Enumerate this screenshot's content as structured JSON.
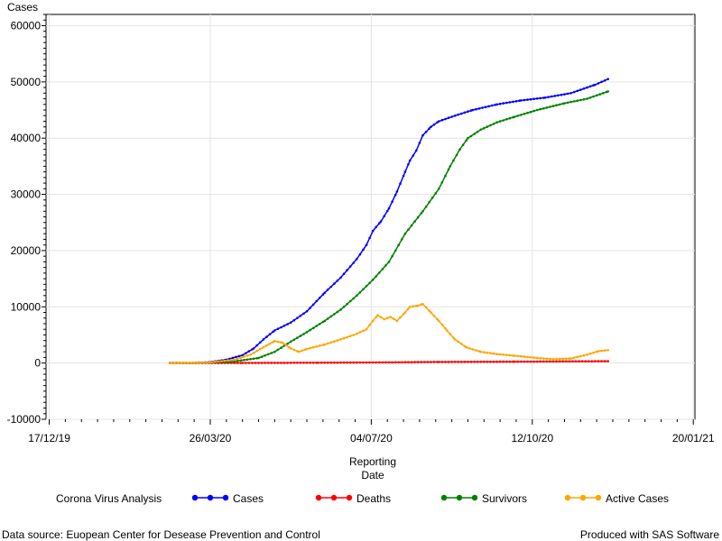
{
  "chart_data": {
    "type": "line",
    "ylabel": "Cases",
    "xlabel_lines": [
      "Reporting",
      "Date"
    ],
    "ylim": [
      -10000,
      62000
    ],
    "y_ticks": [
      -10000,
      0,
      10000,
      20000,
      30000,
      40000,
      50000,
      60000
    ],
    "x_ticks": [
      {
        "date": "2019-12-17",
        "label": "17/12/19"
      },
      {
        "date": "2020-03-26",
        "label": "26/03/20"
      },
      {
        "date": "2020-07-04",
        "label": "04/07/20"
      },
      {
        "date": "2020-10-12",
        "label": "12/10/20"
      },
      {
        "date": "2021-01-20",
        "label": "20/01/21"
      }
    ],
    "xlim": [
      "2019-12-15",
      "2021-01-21"
    ],
    "grid": true,
    "legend_title": "Corona Virus Analysis",
    "legend_position": "bottom",
    "series": [
      {
        "name": "Cases",
        "color": "#0000ff",
        "points": [
          [
            "2020-03-01",
            0
          ],
          [
            "2020-03-15",
            50
          ],
          [
            "2020-03-25",
            150
          ],
          [
            "2020-04-05",
            600
          ],
          [
            "2020-04-15",
            1400
          ],
          [
            "2020-04-22",
            2600
          ],
          [
            "2020-04-28",
            4200
          ],
          [
            "2020-05-05",
            5800
          ],
          [
            "2020-05-15",
            7200
          ],
          [
            "2020-05-25",
            9200
          ],
          [
            "2020-06-05",
            12500
          ],
          [
            "2020-06-15",
            15200
          ],
          [
            "2020-06-25",
            18500
          ],
          [
            "2020-07-01",
            21000
          ],
          [
            "2020-07-05",
            23500
          ],
          [
            "2020-07-10",
            25200
          ],
          [
            "2020-07-15",
            27500
          ],
          [
            "2020-07-20",
            30500
          ],
          [
            "2020-07-25",
            34000
          ],
          [
            "2020-07-28",
            36000
          ],
          [
            "2020-08-01",
            37800
          ],
          [
            "2020-08-05",
            40500
          ],
          [
            "2020-08-10",
            42000
          ],
          [
            "2020-08-15",
            43000
          ],
          [
            "2020-08-25",
            44000
          ],
          [
            "2020-09-05",
            45000
          ],
          [
            "2020-09-20",
            46000
          ],
          [
            "2020-10-05",
            46700
          ],
          [
            "2020-10-20",
            47200
          ],
          [
            "2020-11-05",
            48000
          ],
          [
            "2020-11-20",
            49500
          ],
          [
            "2020-11-28",
            50500
          ]
        ]
      },
      {
        "name": "Deaths",
        "color": "#ff0000",
        "points": [
          [
            "2020-03-01",
            0
          ],
          [
            "2020-04-15",
            20
          ],
          [
            "2020-06-01",
            60
          ],
          [
            "2020-07-15",
            120
          ],
          [
            "2020-08-15",
            200
          ],
          [
            "2020-10-01",
            250
          ],
          [
            "2020-11-28",
            330
          ]
        ]
      },
      {
        "name": "Survivors",
        "color": "#008000",
        "points": [
          [
            "2020-03-01",
            0
          ],
          [
            "2020-03-25",
            50
          ],
          [
            "2020-04-10",
            300
          ],
          [
            "2020-04-25",
            900
          ],
          [
            "2020-05-05",
            2000
          ],
          [
            "2020-05-15",
            3800
          ],
          [
            "2020-05-25",
            5500
          ],
          [
            "2020-06-05",
            7500
          ],
          [
            "2020-06-15",
            9500
          ],
          [
            "2020-06-25",
            12000
          ],
          [
            "2020-07-05",
            14800
          ],
          [
            "2020-07-15",
            18000
          ],
          [
            "2020-07-25",
            23000
          ],
          [
            "2020-08-05",
            27000
          ],
          [
            "2020-08-15",
            31000
          ],
          [
            "2020-08-22",
            35000
          ],
          [
            "2020-08-28",
            38000
          ],
          [
            "2020-09-02",
            40000
          ],
          [
            "2020-09-10",
            41500
          ],
          [
            "2020-09-20",
            42800
          ],
          [
            "2020-10-01",
            43800
          ],
          [
            "2020-10-15",
            45000
          ],
          [
            "2020-11-01",
            46200
          ],
          [
            "2020-11-15",
            47000
          ],
          [
            "2020-11-28",
            48300
          ]
        ]
      },
      {
        "name": "Active Cases",
        "color": "#ffa500",
        "points": [
          [
            "2020-03-01",
            0
          ],
          [
            "2020-03-25",
            100
          ],
          [
            "2020-04-10",
            600
          ],
          [
            "2020-04-20",
            1500
          ],
          [
            "2020-04-28",
            2800
          ],
          [
            "2020-05-05",
            3900
          ],
          [
            "2020-05-10",
            3600
          ],
          [
            "2020-05-15",
            2600
          ],
          [
            "2020-05-20",
            2000
          ],
          [
            "2020-05-25",
            2500
          ],
          [
            "2020-06-05",
            3300
          ],
          [
            "2020-06-15",
            4200
          ],
          [
            "2020-06-25",
            5200
          ],
          [
            "2020-07-01",
            6000
          ],
          [
            "2020-07-05",
            7500
          ],
          [
            "2020-07-08",
            8500
          ],
          [
            "2020-07-12",
            7800
          ],
          [
            "2020-07-16",
            8200
          ],
          [
            "2020-07-20",
            7500
          ],
          [
            "2020-07-25",
            9000
          ],
          [
            "2020-07-28",
            10000
          ],
          [
            "2020-08-02",
            10200
          ],
          [
            "2020-08-05",
            10500
          ],
          [
            "2020-08-10",
            9000
          ],
          [
            "2020-08-15",
            7500
          ],
          [
            "2020-08-20",
            5800
          ],
          [
            "2020-08-25",
            4200
          ],
          [
            "2020-09-01",
            2800
          ],
          [
            "2020-09-10",
            2000
          ],
          [
            "2020-09-20",
            1600
          ],
          [
            "2020-10-01",
            1300
          ],
          [
            "2020-10-15",
            900
          ],
          [
            "2020-10-25",
            700
          ],
          [
            "2020-11-05",
            800
          ],
          [
            "2020-11-15",
            1500
          ],
          [
            "2020-11-22",
            2100
          ],
          [
            "2020-11-28",
            2300
          ]
        ]
      }
    ]
  },
  "footer": {
    "source": "Data source: Euopean Center for Desease Prevention and Control",
    "produced": "Produced with SAS Software"
  }
}
